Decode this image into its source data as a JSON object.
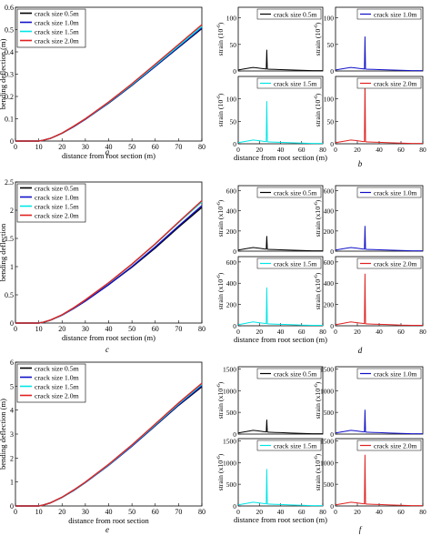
{
  "colors": {
    "crack_0_5": "#000000",
    "crack_1_0": "#1010c8",
    "crack_1_5": "#00e6e6",
    "crack_2_0": "#e02020",
    "axis": "#000000"
  },
  "chart_data": [
    {
      "id": "a",
      "caption": "a",
      "type": "line",
      "xlabel": "distance from root section (m)",
      "ylabel": "bending deflection (m)",
      "xlim": [
        0,
        80
      ],
      "ylim": [
        0,
        0.6
      ],
      "xticks": [
        0,
        10,
        20,
        30,
        40,
        50,
        60,
        70,
        80
      ],
      "yticks": [
        0,
        0.1,
        0.2,
        0.3,
        0.4,
        0.5,
        0.6
      ],
      "legend": "top-left",
      "series": [
        {
          "name": "crack size 0.5m",
          "color_key": "crack_0_5",
          "x": [
            0,
            10,
            12,
            15,
            20,
            25,
            30,
            40,
            50,
            60,
            70,
            80
          ],
          "y": [
            0,
            0,
            0.004,
            0.012,
            0.035,
            0.065,
            0.098,
            0.17,
            0.25,
            0.335,
            0.42,
            0.505
          ]
        },
        {
          "name": "crack size 1.0m",
          "color_key": "crack_1_0",
          "x": [
            0,
            10,
            12,
            15,
            20,
            25,
            30,
            40,
            50,
            60,
            70,
            80
          ],
          "y": [
            0,
            0,
            0.004,
            0.012,
            0.035,
            0.065,
            0.098,
            0.171,
            0.251,
            0.336,
            0.422,
            0.508
          ]
        },
        {
          "name": "crack size 1.5m",
          "color_key": "crack_1_5",
          "x": [
            0,
            10,
            12,
            15,
            20,
            25,
            30,
            40,
            50,
            60,
            70,
            80
          ],
          "y": [
            0,
            0,
            0.004,
            0.012,
            0.035,
            0.066,
            0.099,
            0.173,
            0.254,
            0.34,
            0.427,
            0.514
          ]
        },
        {
          "name": "crack size 2.0m",
          "color_key": "crack_2_0",
          "x": [
            0,
            10,
            12,
            15,
            20,
            25,
            30,
            40,
            50,
            60,
            70,
            80
          ],
          "y": [
            0,
            0,
            0.004,
            0.012,
            0.036,
            0.067,
            0.1,
            0.175,
            0.257,
            0.345,
            0.433,
            0.522
          ]
        }
      ]
    },
    {
      "id": "c",
      "caption": "c",
      "type": "line",
      "xlabel": "distance from root section (m)",
      "ylabel": "bending deflection",
      "xlim": [
        0,
        80
      ],
      "ylim": [
        0,
        2.5
      ],
      "xticks": [
        0,
        10,
        20,
        30,
        40,
        50,
        60,
        70,
        80
      ],
      "yticks": [
        0,
        0.5,
        1,
        1.5,
        2,
        2.5
      ],
      "legend": "top-left",
      "series": [
        {
          "name": "crack size 0.5m",
          "color_key": "crack_0_5",
          "x": [
            0,
            10,
            12,
            15,
            20,
            25,
            30,
            40,
            50,
            60,
            70,
            80
          ],
          "y": [
            0,
            0,
            0.015,
            0.05,
            0.14,
            0.26,
            0.39,
            0.68,
            0.99,
            1.33,
            1.7,
            2.05
          ]
        },
        {
          "name": "crack size 1.0m",
          "color_key": "crack_1_0",
          "x": [
            0,
            10,
            12,
            15,
            20,
            25,
            30,
            40,
            50,
            60,
            70,
            80
          ],
          "y": [
            0,
            0,
            0.015,
            0.05,
            0.14,
            0.26,
            0.39,
            0.68,
            1.0,
            1.35,
            1.72,
            2.08
          ]
        },
        {
          "name": "crack size 1.5m",
          "color_key": "crack_1_5",
          "x": [
            0,
            10,
            12,
            15,
            20,
            25,
            30,
            40,
            50,
            60,
            70,
            80
          ],
          "y": [
            0,
            0,
            0.016,
            0.052,
            0.145,
            0.27,
            0.41,
            0.71,
            1.04,
            1.4,
            1.78,
            2.15
          ]
        },
        {
          "name": "crack size 2.0m",
          "color_key": "crack_2_0",
          "x": [
            0,
            10,
            12,
            15,
            20,
            25,
            30,
            40,
            50,
            60,
            70,
            80
          ],
          "y": [
            0,
            0,
            0.016,
            0.053,
            0.147,
            0.272,
            0.412,
            0.715,
            1.045,
            1.405,
            1.79,
            2.17
          ]
        }
      ]
    },
    {
      "id": "e",
      "caption": "e",
      "type": "line",
      "xlabel": "distance from root section",
      "ylabel": "bending deflection (m)",
      "xlim": [
        0,
        80
      ],
      "ylim": [
        0,
        6
      ],
      "xticks": [
        0,
        10,
        20,
        30,
        40,
        50,
        60,
        70,
        80
      ],
      "yticks": [
        0,
        1,
        2,
        3,
        4,
        5,
        6
      ],
      "legend": "top-left",
      "series": [
        {
          "name": "crack size 0.5m",
          "color_key": "crack_0_5",
          "x": [
            0,
            10,
            12,
            15,
            20,
            25,
            30,
            40,
            50,
            60,
            70,
            80
          ],
          "y": [
            0,
            0,
            0.04,
            0.13,
            0.36,
            0.65,
            0.98,
            1.7,
            2.5,
            3.35,
            4.2,
            4.98
          ]
        },
        {
          "name": "crack size 1.0m",
          "color_key": "crack_1_0",
          "x": [
            0,
            10,
            12,
            15,
            20,
            25,
            30,
            40,
            50,
            60,
            70,
            80
          ],
          "y": [
            0,
            0,
            0.04,
            0.13,
            0.36,
            0.65,
            0.98,
            1.7,
            2.5,
            3.36,
            4.22,
            5.02
          ]
        },
        {
          "name": "crack size 1.5m",
          "color_key": "crack_1_5",
          "x": [
            0,
            10,
            12,
            15,
            20,
            25,
            30,
            40,
            50,
            60,
            70,
            80
          ],
          "y": [
            0,
            0,
            0.04,
            0.13,
            0.36,
            0.66,
            0.99,
            1.72,
            2.53,
            3.39,
            4.26,
            5.07
          ]
        },
        {
          "name": "crack size 2.0m",
          "color_key": "crack_2_0",
          "x": [
            0,
            10,
            12,
            15,
            20,
            25,
            30,
            40,
            50,
            60,
            70,
            80
          ],
          "y": [
            0,
            0,
            0.04,
            0.13,
            0.37,
            0.67,
            1.0,
            1.74,
            2.55,
            3.42,
            4.3,
            5.12
          ]
        }
      ]
    },
    {
      "id": "b",
      "caption": "b",
      "type": "line",
      "xlabel": "distance from root section (m)",
      "ylabel": "strain (10",
      "ylabel_sup": "-6",
      "ylabel_close": ")",
      "xlim": [
        0,
        80
      ],
      "panels": [
        {
          "label": "crack size 0.5m",
          "color_key": "crack_0_5",
          "ylim": [
            0,
            120
          ],
          "yticks": [
            0,
            50,
            100
          ],
          "peak": 40,
          "xticks": [],
          "xticklabels": false,
          "ylabel": true
        },
        {
          "label": "crack size 1.0m",
          "color_key": "crack_1_0",
          "ylim": [
            0,
            120
          ],
          "yticks": [
            0,
            50,
            100
          ],
          "peak": 65,
          "xticks": [],
          "xticklabels": false,
          "ylabel": true
        },
        {
          "label": "crack size 1.5m",
          "color_key": "crack_1_5",
          "ylim": [
            0,
            150
          ],
          "yticks": [
            0,
            50,
            100
          ],
          "peak": 95,
          "xticks": [
            0,
            20,
            40,
            60,
            80
          ],
          "xticklabels": true,
          "ylabel": true
        },
        {
          "label": "crack size 2.0m",
          "color_key": "crack_2_0",
          "ylim": [
            0,
            150
          ],
          "yticks": [
            0,
            50,
            100
          ],
          "peak": 140,
          "xticks": [
            0,
            20,
            40,
            60,
            80
          ],
          "xticklabels": true,
          "ylabel": true
        }
      ]
    },
    {
      "id": "d",
      "caption": "d",
      "type": "line",
      "xlabel": "distance from root section (m)",
      "ylabel": "strain (x10",
      "ylabel_sup": "-6",
      "ylabel_close": ")",
      "xlim": [
        0,
        80
      ],
      "panels": [
        {
          "label": "crack size 0.5m",
          "color_key": "crack_0_5",
          "ylim": [
            0,
            650
          ],
          "yticks": [
            0,
            200,
            400,
            600
          ],
          "peak": 150,
          "xticks": [],
          "xticklabels": false,
          "ylabel": true
        },
        {
          "label": "crack size 1.0m",
          "color_key": "crack_1_0",
          "ylim": [
            0,
            650
          ],
          "yticks": [
            0,
            200,
            400,
            600
          ],
          "peak": 250,
          "xticks": [],
          "xticklabels": false,
          "ylabel": true
        },
        {
          "label": "crack size 1.5m",
          "color_key": "crack_1_5",
          "ylim": [
            0,
            650
          ],
          "yticks": [
            0,
            200,
            400,
            600
          ],
          "peak": 360,
          "xticks": [
            0,
            20,
            40,
            60,
            80
          ],
          "xticklabels": true,
          "ylabel": true
        },
        {
          "label": "crack size 2.0m",
          "color_key": "crack_2_0",
          "ylim": [
            0,
            650
          ],
          "yticks": [
            0,
            200,
            400,
            600
          ],
          "peak": 490,
          "xticks": [
            0,
            20,
            40,
            60,
            80
          ],
          "xticklabels": true,
          "ylabel": true
        }
      ]
    },
    {
      "id": "f",
      "caption": "f",
      "type": "line",
      "xlabel": "distance from root section (m)",
      "ylabel": "strain (x10",
      "ylabel_sup": "-6",
      "ylabel_close": ")",
      "xlim": [
        0,
        80
      ],
      "panels": [
        {
          "label": "crack size 0.5m",
          "color_key": "crack_0_5",
          "ylim": [
            0,
            1550
          ],
          "yticks": [
            0,
            500,
            1000,
            1500
          ],
          "peak": 330,
          "xticks": [],
          "xticklabels": false,
          "ylabel": true
        },
        {
          "label": "crack size 1.0m",
          "color_key": "crack_1_0",
          "ylim": [
            0,
            1550
          ],
          "yticks": [
            0,
            500,
            1000,
            1500
          ],
          "peak": 560,
          "xticks": [],
          "xticklabels": false,
          "ylabel": true
        },
        {
          "label": "crack size 1.5m",
          "color_key": "crack_1_5",
          "ylim": [
            0,
            1550
          ],
          "yticks": [
            0,
            500,
            1000,
            1500
          ],
          "peak": 850,
          "xticks": [
            0,
            20,
            40,
            60,
            80
          ],
          "xticklabels": true,
          "ylabel": true
        },
        {
          "label": "crack size 2.0m",
          "color_key": "crack_2_0",
          "ylim": [
            0,
            1550
          ],
          "yticks": [
            0,
            500,
            1000,
            1500
          ],
          "peak": 1180,
          "xticks": [
            0,
            20,
            40,
            60,
            80
          ],
          "xticklabels": true,
          "ylabel": true
        }
      ]
    }
  ]
}
